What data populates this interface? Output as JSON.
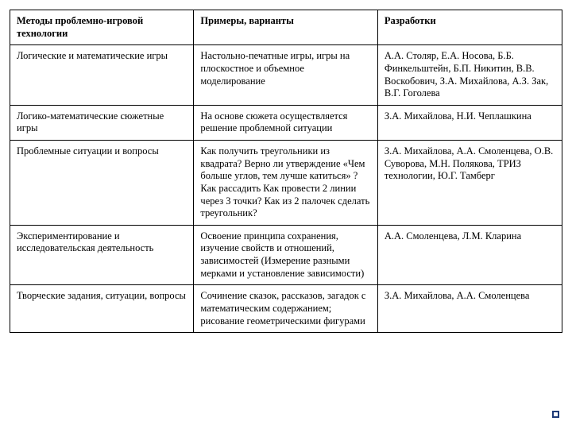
{
  "table": {
    "columns": [
      "Методы проблемно-игровой технологии",
      "Примеры, варианты",
      "Разработки"
    ],
    "rows": [
      [
        "Логические и математические игры",
        "Настольно-печатные игры, игры на плоскостное и объемное моделирование",
        "А.А. Столяр, Е.А. Носова, Б.Б. Финкельштейн, Б.П. Никитин, В.В. Воскобович, З.А. Михайлова, А.З. Зак, В.Г. Гоголева"
      ],
      [
        "Логико-математические сюжетные игры",
        "На основе сюжета осуществляется решение проблемной ситуации",
        "З.А. Михайлова, Н.И. Чеплашкина"
      ],
      [
        "Проблемные ситуации и вопросы",
        "Как получить треугольники из квадрата? Верно ли утверждение «Чем больше углов, тем лучше катиться» ? Как рассадить Как провести 2 линии через 3 точки? Как из 2 палочек сделать треугольник?",
        "З.А. Михайлова, А.А. Смоленцева, О.В. Суворова, М.Н. Полякова, ТРИЗ технологии, Ю.Г. Тамберг"
      ],
      [
        "Экспериментирование и исследовательская деятельность",
        "Освоение принципа сохранения, изучение свойств и отношений, зависимостей (Измерение разными мерками и установление зависимости)",
        "А.А. Смоленцева, Л.М. Кларина"
      ],
      [
        "Творческие задания, ситуации, вопросы",
        "Сочинение сказок, рассказов, загадок с математическим содержанием; рисование геометрическими фигурами",
        "З.А. Михайлова, А.А. Смоленцева"
      ]
    ]
  }
}
